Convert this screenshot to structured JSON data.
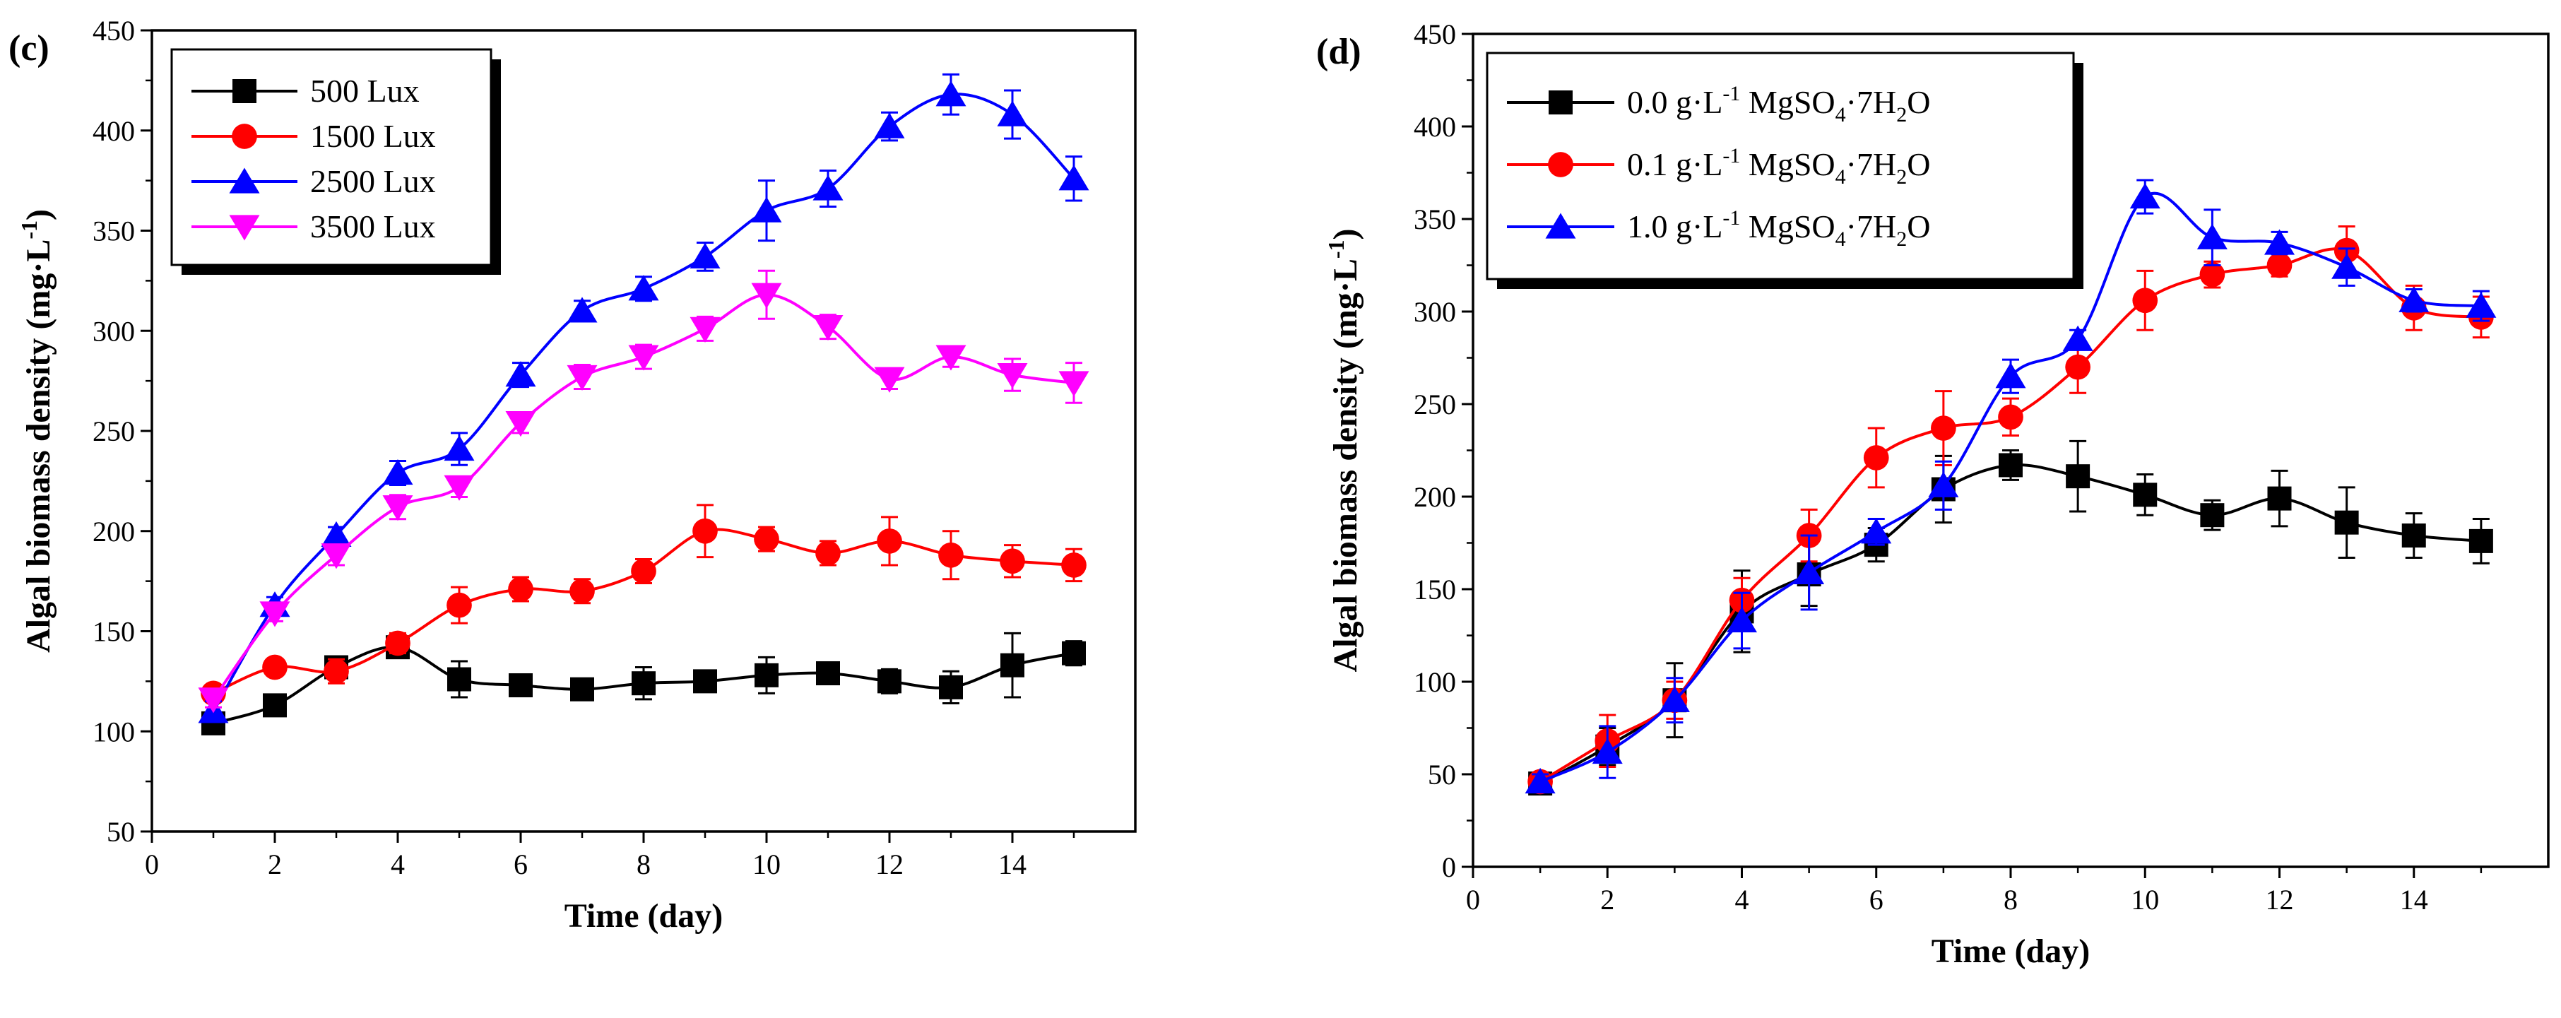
{
  "chart_data": [
    {
      "type": "line",
      "panel_label": "(c)",
      "title": "",
      "xlabel": "Time (day)",
      "ylabel_main": "Algal biomass density (mg·L",
      "ylabel_sup": "-1",
      "ylabel_close": ")",
      "xlim": [
        0,
        16
      ],
      "ylim": [
        50,
        450
      ],
      "xticks": [
        "0",
        "2",
        "4",
        "6",
        "8",
        "10",
        "12",
        "14"
      ],
      "yticks": [
        "50",
        "100",
        "150",
        "200",
        "250",
        "300",
        "350",
        "400",
        "450"
      ],
      "legend_position": "top-left",
      "x": [
        1,
        2,
        3,
        4,
        5,
        6,
        7,
        8,
        9,
        10,
        11,
        12,
        13,
        14,
        15
      ],
      "series": [
        {
          "name": "500 Lux",
          "color": "#000000",
          "marker": "square",
          "values": [
            104,
            113,
            132,
            142,
            126,
            123,
            121,
            124,
            125,
            128,
            129,
            125,
            122,
            133,
            139
          ],
          "errors": [
            4,
            5,
            5,
            4,
            9,
            5,
            5,
            8,
            5,
            9,
            5,
            6,
            8,
            16,
            6
          ]
        },
        {
          "name": "1500 Lux",
          "color": "#ff0000",
          "marker": "circle",
          "values": [
            119,
            132,
            130,
            144,
            163,
            171,
            170,
            180,
            200,
            196,
            189,
            195,
            188,
            185,
            183
          ],
          "errors": [
            3,
            4,
            6,
            5,
            9,
            6,
            6,
            6,
            13,
            6,
            6,
            12,
            12,
            8,
            8
          ]
        },
        {
          "name": "2500 Lux",
          "color": "#0000ff",
          "marker": "triangle-up",
          "values": [
            110,
            163,
            198,
            229,
            241,
            278,
            310,
            321,
            337,
            360,
            371,
            402,
            418,
            408,
            376
          ],
          "errors": [
            5,
            4,
            4,
            6,
            8,
            6,
            5,
            6,
            7,
            15,
            9,
            7,
            10,
            12,
            11
          ]
        },
        {
          "name": "3500 Lux",
          "color": "#ff00ff",
          "marker": "triangle-down",
          "values": [
            116,
            159,
            188,
            212,
            222,
            254,
            277,
            287,
            301,
            318,
            302,
            276,
            287,
            278,
            274
          ],
          "errors": [
            4,
            4,
            5,
            6,
            5,
            5,
            6,
            6,
            6,
            12,
            6,
            5,
            5,
            8,
            10
          ]
        }
      ]
    },
    {
      "type": "line",
      "panel_label": "(d)",
      "title": "",
      "xlabel": "Time (day)",
      "ylabel_main": "Algal biomass density (mg·L",
      "ylabel_sup": "-1",
      "ylabel_close": ")",
      "xlim": [
        0,
        16
      ],
      "ylim": [
        0,
        450
      ],
      "xticks": [
        "0",
        "2",
        "4",
        "6",
        "8",
        "10",
        "12",
        "14"
      ],
      "yticks": [
        "0",
        "50",
        "100",
        "150",
        "200",
        "250",
        "300",
        "350",
        "400",
        "450"
      ],
      "legend_position": "top-left",
      "x": [
        1,
        2,
        3,
        4,
        5,
        6,
        7,
        8,
        9,
        10,
        11,
        12,
        13,
        14,
        15
      ],
      "series": [
        {
          "name": "0.0 g·L-1 MgSO4·7H2O",
          "label_parts": [
            "0.0 g·L",
            "-1",
            " MgSO",
            "4",
            "·7H",
            "2",
            "O"
          ],
          "color": "#000000",
          "marker": "square",
          "values": [
            45,
            65,
            90,
            138,
            158,
            174,
            204,
            217,
            211,
            201,
            190,
            199,
            186,
            179,
            176
          ],
          "errors": [
            5,
            10,
            20,
            22,
            17,
            9,
            18,
            8,
            19,
            11,
            8,
            15,
            19,
            12,
            12
          ]
        },
        {
          "name": "0.1 g·L-1 MgSO4·7H2O",
          "label_parts": [
            "0.1 g·L",
            "-1",
            " MgSO",
            "4",
            "·7H",
            "2",
            "O"
          ],
          "color": "#ff0000",
          "marker": "circle",
          "values": [
            46,
            68,
            90,
            144,
            179,
            221,
            237,
            243,
            270,
            306,
            320,
            325,
            333,
            302,
            297
          ],
          "errors": [
            4,
            14,
            10,
            12,
            14,
            16,
            20,
            10,
            14,
            16,
            7,
            6,
            13,
            12,
            11
          ]
        },
        {
          "name": "1.0 g·L-1 MgSO4·7H2O",
          "label_parts": [
            "1.0 g·L",
            "-1",
            " MgSO",
            "4",
            "·7H",
            "2",
            "O"
          ],
          "color": "#0000ff",
          "marker": "triangle-up",
          "values": [
            46,
            62,
            90,
            133,
            159,
            181,
            206,
            265,
            285,
            362,
            340,
            337,
            324,
            306,
            303
          ],
          "errors": [
            4,
            14,
            12,
            15,
            20,
            7,
            13,
            9,
            5,
            9,
            15,
            6,
            10,
            6,
            8
          ]
        }
      ]
    }
  ]
}
